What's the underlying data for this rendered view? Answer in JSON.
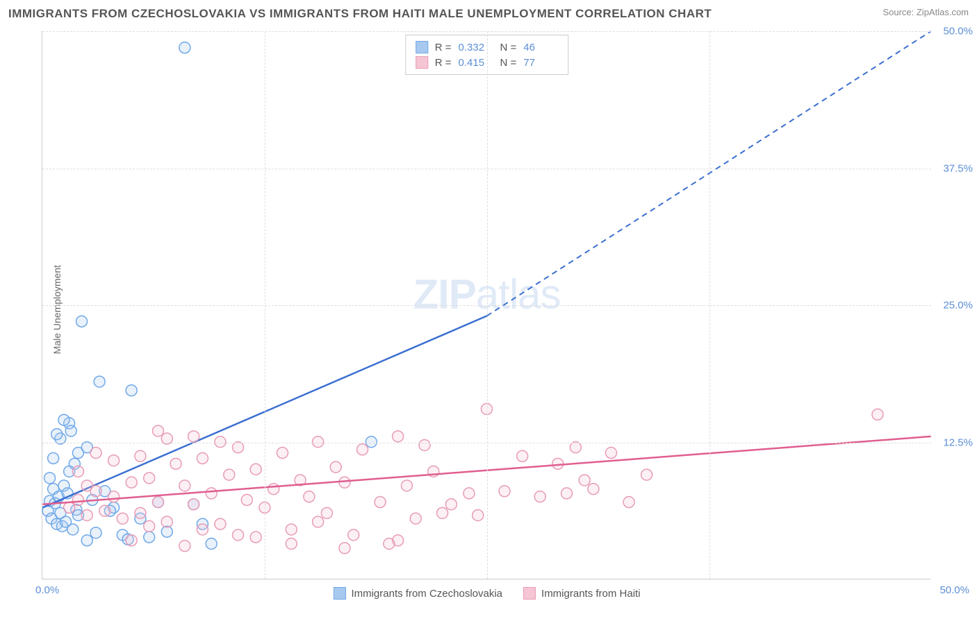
{
  "title": "IMMIGRANTS FROM CZECHOSLOVAKIA VS IMMIGRANTS FROM HAITI MALE UNEMPLOYMENT CORRELATION CHART",
  "source": "Source: ZipAtlas.com",
  "watermark_a": "ZIP",
  "watermark_b": "atlas",
  "y_axis_label": "Male Unemployment",
  "x_min_label": "0.0%",
  "x_max_label": "50.0%",
  "chart": {
    "type": "scatter",
    "xlim": [
      0,
      50
    ],
    "ylim": [
      0,
      50
    ],
    "y_ticks": [
      {
        "value": 12.5,
        "label": "12.5%"
      },
      {
        "value": 25.0,
        "label": "25.0%"
      },
      {
        "value": 37.5,
        "label": "37.5%"
      },
      {
        "value": 50.0,
        "label": "50.0%"
      }
    ],
    "x_ticks_grid": [
      12.5,
      25,
      37.5
    ],
    "grid_color": "#dddddd",
    "background_color": "#ffffff",
    "axis_label_color": "#5b8fd6",
    "marker_radius": 8,
    "marker_stroke_width": 1.5,
    "marker_fill_opacity": 0.25,
    "trend_line_width": 2.5,
    "trend_dash_width": 2
  },
  "series": [
    {
      "key": "czech",
      "label": "Immigrants from Czechoslovakia",
      "color_stroke": "#6fa8e8",
      "color_fill": "#a8c9ef",
      "trend_color": "#3b6fd1",
      "R_label": "R =",
      "R_value": "0.332",
      "N_label": "N =",
      "N_value": "46",
      "trend": {
        "x1": 0,
        "y1": 6.5,
        "x2_solid": 25,
        "y2_solid": 24,
        "x2_dash": 50,
        "y2_dash": 50
      },
      "points": [
        [
          0.3,
          6.2
        ],
        [
          0.4,
          7.1
        ],
        [
          0.5,
          5.5
        ],
        [
          0.6,
          8.2
        ],
        [
          0.7,
          6.9
        ],
        [
          0.8,
          5.0
        ],
        [
          0.9,
          7.5
        ],
        [
          1.0,
          6.0
        ],
        [
          1.1,
          4.8
        ],
        [
          1.2,
          8.5
        ],
        [
          1.3,
          5.2
        ],
        [
          1.4,
          7.8
        ],
        [
          1.5,
          14.2
        ],
        [
          1.6,
          13.5
        ],
        [
          1.7,
          4.5
        ],
        [
          1.8,
          10.5
        ],
        [
          1.9,
          6.3
        ],
        [
          2.0,
          5.8
        ],
        [
          2.2,
          23.5
        ],
        [
          2.5,
          3.5
        ],
        [
          2.8,
          7.2
        ],
        [
          3.0,
          4.2
        ],
        [
          3.2,
          18.0
        ],
        [
          3.5,
          8.0
        ],
        [
          4.0,
          6.5
        ],
        [
          4.5,
          4.0
        ],
        [
          5.0,
          17.2
        ],
        [
          5.5,
          5.5
        ],
        [
          6.0,
          3.8
        ],
        [
          6.5,
          7.0
        ],
        [
          7.0,
          4.3
        ],
        [
          8.0,
          48.5
        ],
        [
          8.5,
          6.8
        ],
        [
          9.0,
          5.0
        ],
        [
          9.5,
          3.2
        ],
        [
          1.0,
          12.8
        ],
        [
          0.8,
          13.2
        ],
        [
          2.0,
          11.5
        ],
        [
          1.5,
          9.8
        ],
        [
          0.6,
          11.0
        ],
        [
          3.8,
          6.2
        ],
        [
          4.8,
          3.6
        ],
        [
          18.5,
          12.5
        ],
        [
          1.2,
          14.5
        ],
        [
          2.5,
          12.0
        ],
        [
          0.4,
          9.2
        ]
      ]
    },
    {
      "key": "haiti",
      "label": "Immigrants from Haiti",
      "color_stroke": "#e89bb5",
      "color_fill": "#f5c5d4",
      "trend_color": "#e05e8f",
      "R_label": "R =",
      "R_value": "0.415",
      "N_label": "N =",
      "N_value": "77",
      "trend": {
        "x1": 0,
        "y1": 6.8,
        "x2_solid": 50,
        "y2_solid": 13.0,
        "x2_dash": 50,
        "y2_dash": 13.0
      },
      "points": [
        [
          1.5,
          6.5
        ],
        [
          2.0,
          7.2
        ],
        [
          2.5,
          5.8
        ],
        [
          3.0,
          8.0
        ],
        [
          3.5,
          6.2
        ],
        [
          4.0,
          7.5
        ],
        [
          4.5,
          5.5
        ],
        [
          5.0,
          8.8
        ],
        [
          5.5,
          6.0
        ],
        [
          6.0,
          9.2
        ],
        [
          6.5,
          7.0
        ],
        [
          7.0,
          5.2
        ],
        [
          7.5,
          10.5
        ],
        [
          8.0,
          8.5
        ],
        [
          8.5,
          6.8
        ],
        [
          9.0,
          11.0
        ],
        [
          9.5,
          7.8
        ],
        [
          10.0,
          5.0
        ],
        [
          10.5,
          9.5
        ],
        [
          11.0,
          12.0
        ],
        [
          11.5,
          7.2
        ],
        [
          12.0,
          10.0
        ],
        [
          12.5,
          6.5
        ],
        [
          13.0,
          8.2
        ],
        [
          13.5,
          11.5
        ],
        [
          14.0,
          4.5
        ],
        [
          14.5,
          9.0
        ],
        [
          15.0,
          7.5
        ],
        [
          15.5,
          12.5
        ],
        [
          16.0,
          6.0
        ],
        [
          16.5,
          10.2
        ],
        [
          17.0,
          8.8
        ],
        [
          17.5,
          4.0
        ],
        [
          18.0,
          11.8
        ],
        [
          19.0,
          7.0
        ],
        [
          20.0,
          13.0
        ],
        [
          20.5,
          8.5
        ],
        [
          21.0,
          5.5
        ],
        [
          21.5,
          12.2
        ],
        [
          22.0,
          9.8
        ],
        [
          23.0,
          6.8
        ],
        [
          24.0,
          7.8
        ],
        [
          25.0,
          15.5
        ],
        [
          26.0,
          8.0
        ],
        [
          27.0,
          11.2
        ],
        [
          28.0,
          7.5
        ],
        [
          29.0,
          10.5
        ],
        [
          30.0,
          12.0
        ],
        [
          31.0,
          8.2
        ],
        [
          32.0,
          11.5
        ],
        [
          33.0,
          7.0
        ],
        [
          34.0,
          9.5
        ],
        [
          5.0,
          3.5
        ],
        [
          8.0,
          3.0
        ],
        [
          11.0,
          4.0
        ],
        [
          14.0,
          3.2
        ],
        [
          17.0,
          2.8
        ],
        [
          20.0,
          3.5
        ],
        [
          6.0,
          4.8
        ],
        [
          9.0,
          4.5
        ],
        [
          12.0,
          3.8
        ],
        [
          47.0,
          15.0
        ],
        [
          3.0,
          11.5
        ],
        [
          4.0,
          10.8
        ],
        [
          5.5,
          11.2
        ],
        [
          7.0,
          12.8
        ],
        [
          2.0,
          9.8
        ],
        [
          2.5,
          8.5
        ],
        [
          6.5,
          13.5
        ],
        [
          8.5,
          13.0
        ],
        [
          10.0,
          12.5
        ],
        [
          29.5,
          7.8
        ],
        [
          30.5,
          9.0
        ],
        [
          22.5,
          6.0
        ],
        [
          24.5,
          5.8
        ],
        [
          19.5,
          3.2
        ],
        [
          15.5,
          5.2
        ]
      ]
    }
  ]
}
